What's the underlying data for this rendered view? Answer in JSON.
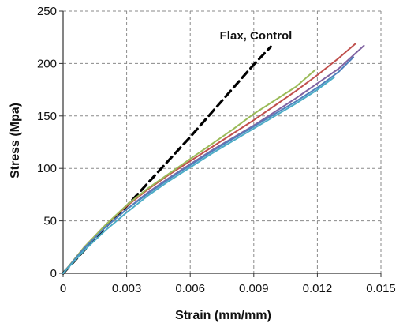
{
  "chart_data": {
    "type": "line",
    "title": "",
    "xlabel": "Strain (mm/mm)",
    "ylabel": "Stress (Mpa)",
    "xlim": [
      0,
      0.015
    ],
    "ylim": [
      0,
      250
    ],
    "x_ticks": [
      0,
      0.003,
      0.006,
      0.009,
      0.012,
      0.015
    ],
    "x_tick_labels": [
      "0",
      "0.003",
      "0.006",
      "0.009",
      "0.012",
      "0.015"
    ],
    "y_ticks": [
      0,
      50,
      100,
      150,
      200,
      250
    ],
    "y_tick_labels": [
      "0",
      "50",
      "100",
      "150",
      "200",
      "250"
    ],
    "grid": true,
    "grid_style": "dashed",
    "legend": "none",
    "annotations": [
      {
        "text": "Flax, Control",
        "x": 0.0091,
        "y": 223
      }
    ],
    "series": [
      {
        "color": "#000000",
        "dashed": true,
        "x": [
          0,
          0.001,
          0.002,
          0.003,
          0.004,
          0.005,
          0.006,
          0.007,
          0.008,
          0.009,
          0.0098
        ],
        "y": [
          0,
          22,
          44,
          64,
          86,
          108,
          130,
          153,
          176,
          199,
          216
        ]
      },
      {
        "color": "#c0504d",
        "x": [
          0,
          0.001,
          0.002,
          0.003,
          0.004,
          0.005,
          0.006,
          0.007,
          0.008,
          0.009,
          0.01,
          0.011,
          0.012,
          0.013,
          0.0138
        ],
        "y": [
          0,
          25,
          46,
          64,
          80,
          94,
          107,
          120,
          133,
          146,
          160,
          174,
          189,
          205,
          219
        ]
      },
      {
        "color": "#8064a2",
        "x": [
          0,
          0.001,
          0.002,
          0.003,
          0.004,
          0.005,
          0.006,
          0.007,
          0.008,
          0.009,
          0.01,
          0.011,
          0.012,
          0.013,
          0.0142
        ],
        "y": [
          0,
          24,
          44,
          61,
          77,
          91,
          104,
          117,
          129,
          141,
          154,
          167,
          181,
          195,
          217
        ]
      },
      {
        "color": "#9bbb59",
        "x": [
          0,
          0.001,
          0.002,
          0.003,
          0.004,
          0.005,
          0.006,
          0.007,
          0.008,
          0.009,
          0.01,
          0.011,
          0.0119
        ],
        "y": [
          0,
          25,
          46,
          65,
          81,
          95,
          109,
          123,
          137,
          152,
          165,
          178,
          194
        ]
      },
      {
        "color": "#4f81bd",
        "x": [
          0,
          0.001,
          0.002,
          0.003,
          0.004,
          0.005,
          0.006,
          0.007,
          0.008,
          0.009,
          0.01,
          0.011,
          0.012,
          0.013,
          0.0137
        ],
        "y": [
          0,
          24,
          44,
          61,
          76,
          90,
          103,
          116,
          128,
          140,
          152,
          164,
          177,
          192,
          206
        ]
      },
      {
        "color": "#4bacc6",
        "x": [
          0,
          0.001,
          0.002,
          0.003,
          0.004,
          0.005,
          0.006,
          0.007,
          0.008,
          0.009,
          0.01,
          0.011,
          0.012,
          0.0128
        ],
        "y": [
          0,
          22,
          41,
          58,
          74,
          88,
          101,
          114,
          126,
          138,
          150,
          162,
          175,
          187
        ]
      }
    ]
  }
}
